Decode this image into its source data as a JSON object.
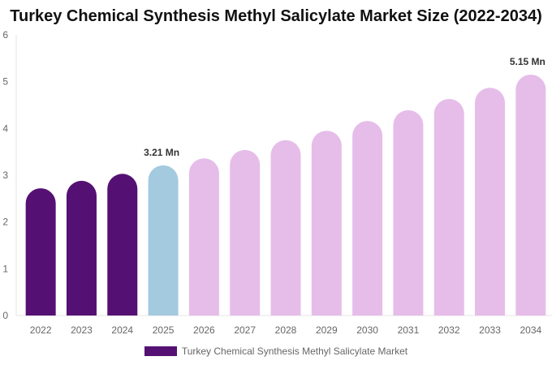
{
  "chart_data": {
    "type": "bar",
    "title": "Turkey Chemical Synthesis Methyl Salicylate Market Size (2022-2034)",
    "categories": [
      "2022",
      "2023",
      "2024",
      "2025",
      "2026",
      "2027",
      "2028",
      "2029",
      "2030",
      "2031",
      "2032",
      "2033",
      "2034"
    ],
    "series": [
      {
        "name": "Turkey Chemical Synthesis Methyl Salicylate Market",
        "values": [
          2.72,
          2.88,
          3.03,
          3.21,
          3.36,
          3.54,
          3.75,
          3.95,
          4.16,
          4.39,
          4.63,
          4.87,
          5.15
        ]
      }
    ],
    "data_labels": [
      {
        "category": "2025",
        "text": "3.21 Mn"
      },
      {
        "category": "2034",
        "text": "5.15 Mn"
      }
    ],
    "ylim": [
      0,
      6
    ],
    "yticks": [
      0,
      1,
      2,
      3,
      4,
      5,
      6
    ],
    "grid": false,
    "legend_position": "bottom",
    "colors": {
      "historical": "#541173",
      "current": "#a3cadf",
      "forecast": "#e6bde9"
    }
  }
}
